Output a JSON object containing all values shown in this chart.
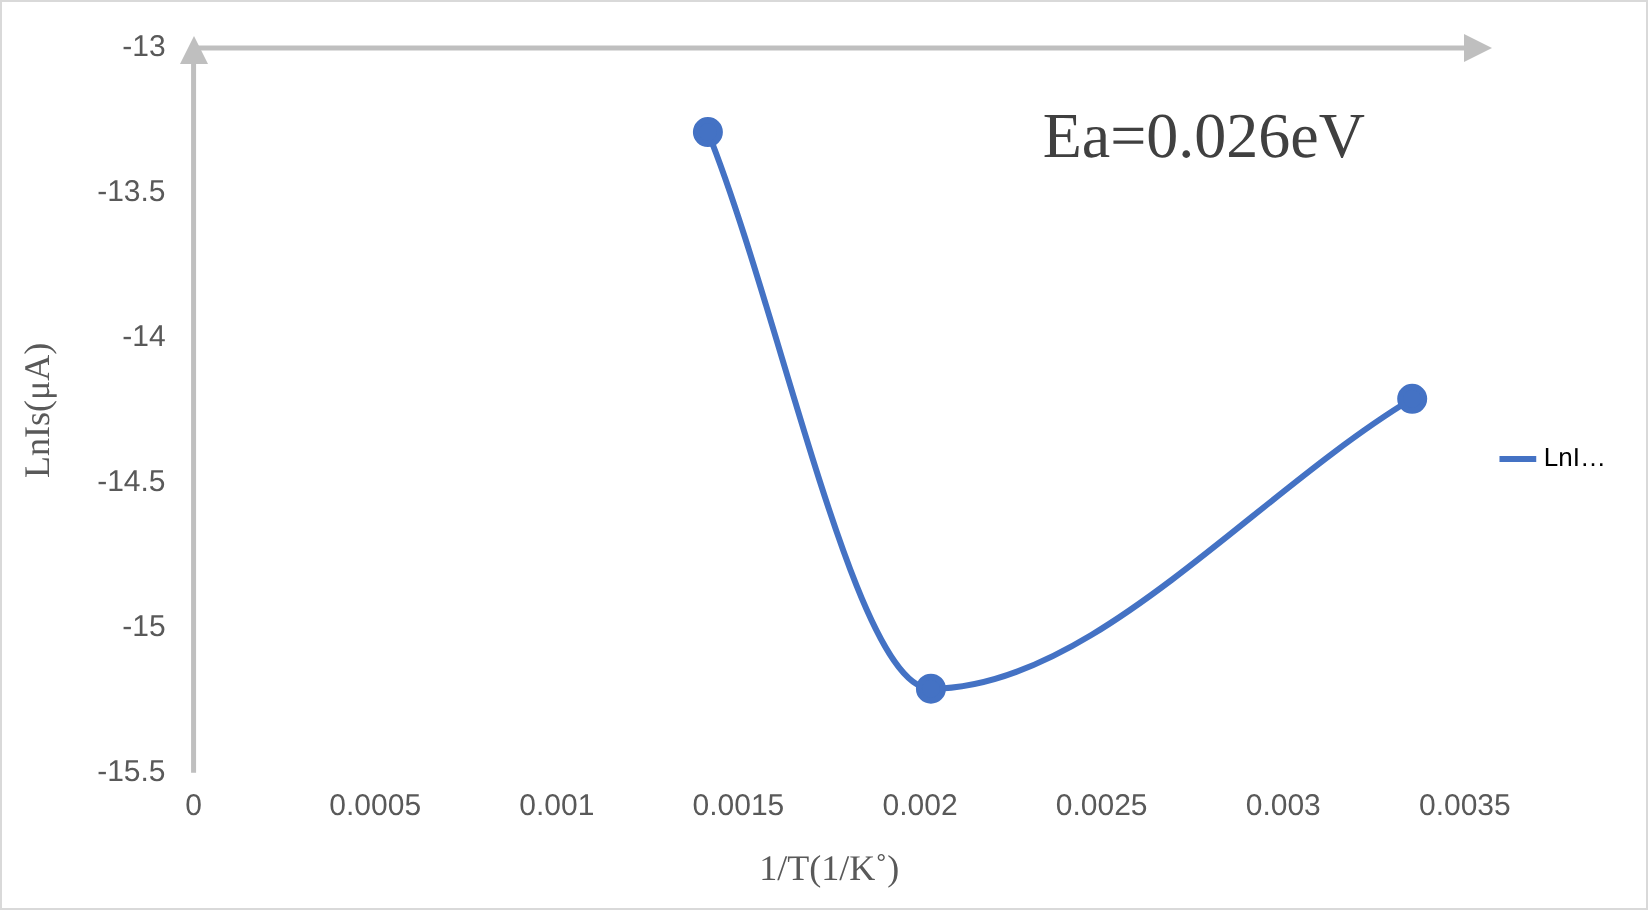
{
  "chart_data": {
    "type": "line",
    "xlabel": "1/T(1/K˚)",
    "ylabel": "LnIs(μA)",
    "annotations": [
      "Ea=0.026eV"
    ],
    "x": [
      0.001416,
      0.00203,
      0.003355
    ],
    "series": [
      {
        "name": "LnI…",
        "color": "#4472c4",
        "values": [
          -13.29,
          -15.21,
          -14.21
        ]
      }
    ],
    "xlim": [
      0,
      0.0035
    ],
    "xticks": [
      0,
      0.0005,
      0.001,
      0.0015,
      0.002,
      0.0025,
      0.003,
      0.0035
    ],
    "ylim": [
      -15.5,
      -13
    ],
    "yticks": [
      -15.5,
      -15,
      -14.5,
      -14,
      -13.5,
      -13
    ],
    "grid": false,
    "legend": "right",
    "marker": "circle",
    "line_style": "solid"
  }
}
